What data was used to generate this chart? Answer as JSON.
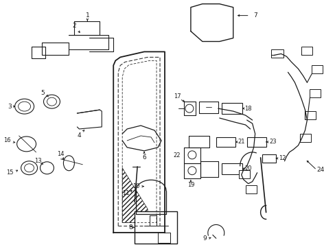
{
  "bg_color": "#ffffff",
  "fig_width": 4.89,
  "fig_height": 3.6,
  "dpi": 100,
  "line_color": "#1a1a1a",
  "text_color": "#1a1a1a"
}
